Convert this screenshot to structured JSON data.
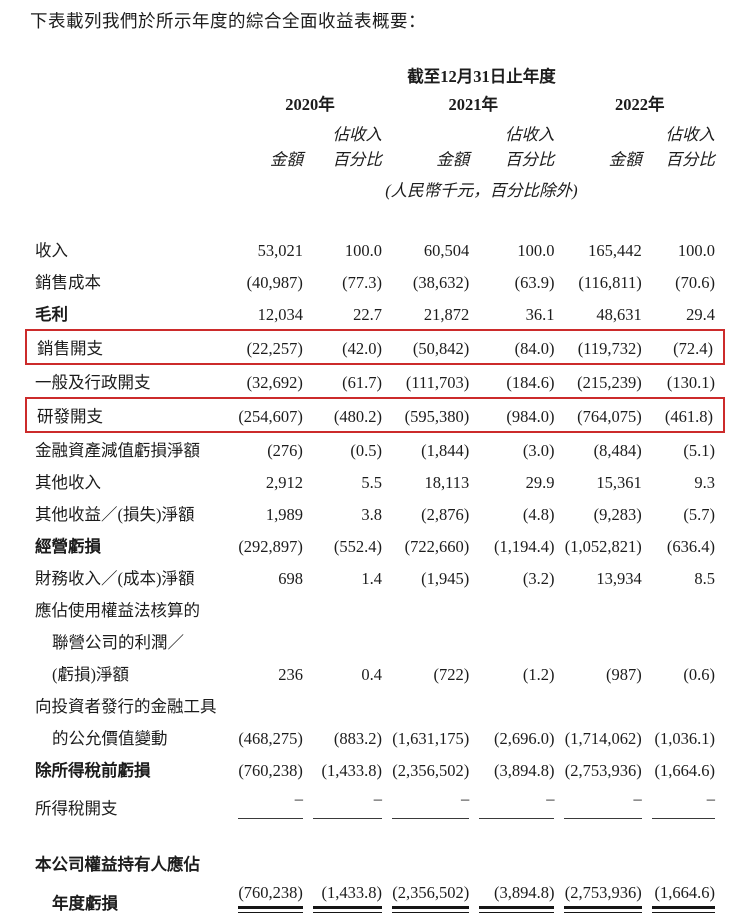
{
  "page": {
    "intro": "下表載列我們於所示年度的綜合全面收益表概要："
  },
  "table": {
    "period_header": "截至12月31日止年度",
    "years": [
      "2020年",
      "2021年",
      "2022年"
    ],
    "sub_headers": {
      "amount": "金額",
      "pct_line1": "佔收入",
      "pct_line2": "百分比"
    },
    "unit_note": "(人民幣千元，百分比除外)",
    "highlight_color": "#cc2b2b",
    "rows": [
      {
        "label": "收入",
        "values": [
          "53,021",
          "100.0",
          "60,504",
          "100.0",
          "165,442",
          "100.0"
        ]
      },
      {
        "label": "銷售成本",
        "values": [
          "(40,987)",
          "(77.3)",
          "(38,632)",
          "(63.9)",
          "(116,811)",
          "(70.6)"
        ]
      },
      {
        "label": "毛利",
        "bold": true,
        "values": [
          "12,034",
          "22.7",
          "21,872",
          "36.1",
          "48,631",
          "29.4"
        ]
      },
      {
        "label": "銷售開支",
        "highlight": true,
        "values": [
          "(22,257)",
          "(42.0)",
          "(50,842)",
          "(84.0)",
          "(119,732)",
          "(72.4)"
        ]
      },
      {
        "label": "一般及行政開支",
        "values": [
          "(32,692)",
          "(61.7)",
          "(111,703)",
          "(184.6)",
          "(215,239)",
          "(130.1)"
        ]
      },
      {
        "label": "研發開支",
        "highlight": true,
        "values": [
          "(254,607)",
          "(480.2)",
          "(595,380)",
          "(984.0)",
          "(764,075)",
          "(461.8)"
        ]
      },
      {
        "label": "金融資產減值虧損淨額",
        "values": [
          "(276)",
          "(0.5)",
          "(1,844)",
          "(3.0)",
          "(8,484)",
          "(5.1)"
        ]
      },
      {
        "label": "其他收入",
        "values": [
          "2,912",
          "5.5",
          "18,113",
          "29.9",
          "15,361",
          "9.3"
        ]
      },
      {
        "label": "其他收益／(損失)淨額",
        "values": [
          "1,989",
          "3.8",
          "(2,876)",
          "(4.8)",
          "(9,283)",
          "(5.7)"
        ]
      },
      {
        "label": "經營虧損",
        "bold": true,
        "values": [
          "(292,897)",
          "(552.4)",
          "(722,660)",
          "(1,194.4)",
          "(1,052,821)",
          "(636.4)"
        ]
      },
      {
        "label": "財務收入／(成本)淨額",
        "values": [
          "698",
          "1.4",
          "(1,945)",
          "(3.2)",
          "13,934",
          "8.5"
        ]
      },
      {
        "label": "應佔使用權益法核算的",
        "values": []
      },
      {
        "label": "聯營公司的利潤／",
        "indent": true,
        "values": []
      },
      {
        "label": "(虧損)淨額",
        "indent": true,
        "values": [
          "236",
          "0.4",
          "(722)",
          "(1.2)",
          "(987)",
          "(0.6)"
        ]
      },
      {
        "label": "向投資者發行的金融工具",
        "values": []
      },
      {
        "label": "的公允價值變動",
        "indent": true,
        "values": [
          "(468,275)",
          "(883.2)",
          "(1,631,175)",
          "(2,696.0)",
          "(1,714,062)",
          "(1,036.1)"
        ]
      },
      {
        "label": "除所得稅前虧損",
        "bold": true,
        "values": [
          "(760,238)",
          "(1,433.8)",
          "(2,356,502)",
          "(3,894.8)",
          "(2,753,936)",
          "(1,664.6)"
        ]
      },
      {
        "label": "所得稅開支",
        "underline": "single",
        "values": [
          "–",
          "–",
          "–",
          "–",
          "–",
          "–"
        ]
      },
      {
        "label": "本公司權益持有人應佔",
        "bold": true,
        "spacer_before": true,
        "values": []
      },
      {
        "label": "年度虧損",
        "bold": true,
        "indent": true,
        "underline": "double",
        "values": [
          "(760,238)",
          "(1,433.8)",
          "(2,356,502)",
          "(3,894.8)",
          "(2,753,936)",
          "(1,664.6)"
        ]
      }
    ]
  }
}
